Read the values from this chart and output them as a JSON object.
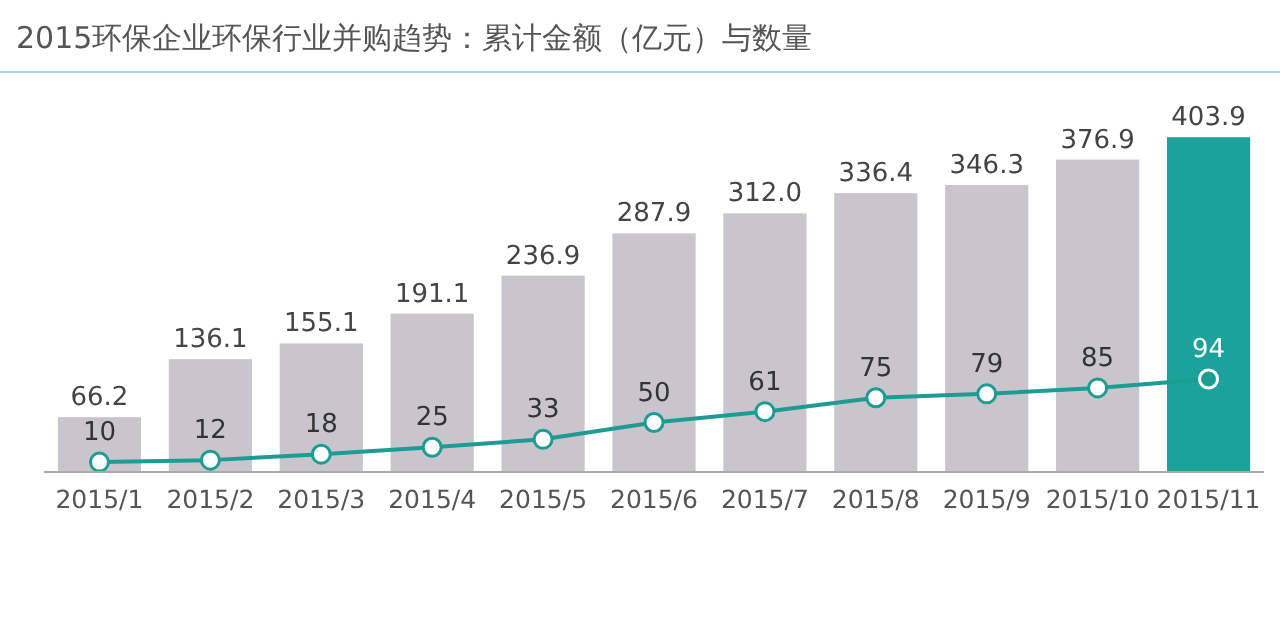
{
  "chart_data": {
    "type": "bar",
    "title": "2015环保企业环保行业并购趋势：累计金额（亿元）与数量",
    "categories": [
      "2015/1",
      "2015/2",
      "2015/3",
      "2015/4",
      "2015/5",
      "2015/6",
      "2015/7",
      "2015/8",
      "2015/9",
      "2015/10",
      "2015/11"
    ],
    "series": [
      {
        "colors": [
          "#c9c5cc",
          "#c9c5cc",
          "#c9c5cc",
          "#c9c5cc",
          "#c9c5cc",
          "#c9c5cc",
          "#c9c5cc",
          "#c9c5cc",
          "#c9c5cc",
          "#c9c5cc",
          "#1ba39b"
        ],
        "values": [
          66.2,
          136.1,
          155.1,
          191.1,
          236.9,
          287.9,
          312.0,
          336.4,
          346.3,
          376.9,
          403.9
        ],
        "value_labels": [
          "66.2",
          "136.1",
          "155.1",
          "191.1",
          "236.9",
          "287.9",
          "312.0",
          "336.4",
          "346.3",
          "376.9",
          "403.9"
        ]
      },
      {
        "type": "line",
        "axis": "y2",
        "color": "#1e9b93",
        "marker": "circle",
        "values": [
          10,
          12,
          18,
          25,
          33,
          50,
          61,
          75,
          79,
          85,
          94
        ],
        "value_labels": [
          "10",
          "12",
          "18",
          "25",
          "33",
          "50",
          "61",
          "75",
          "79",
          "85",
          "94"
        ]
      }
    ],
    "grid": false,
    "tick_labels": "x"
  }
}
